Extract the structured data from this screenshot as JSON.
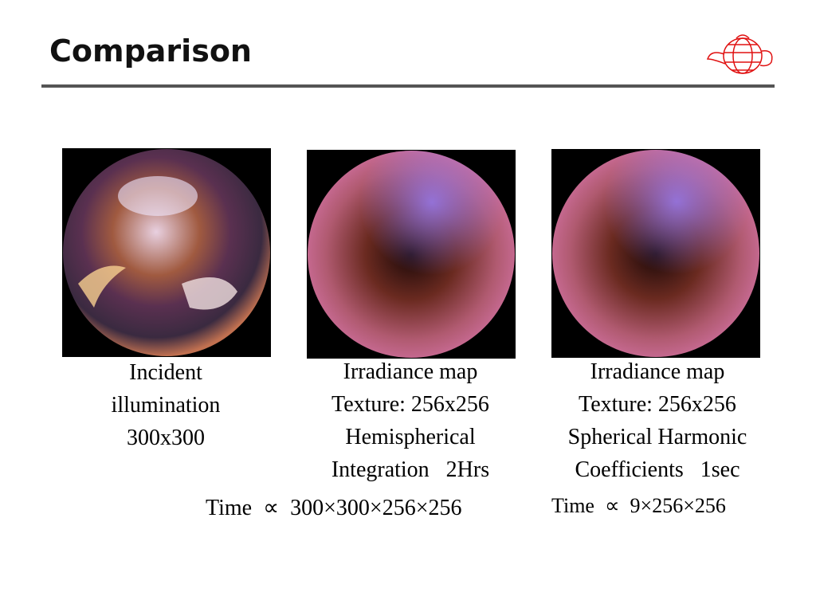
{
  "title": "Comparison",
  "panels": [
    {
      "caption": [
        "Incident",
        "illumination",
        "300x300"
      ]
    },
    {
      "caption": [
        "Irradiance map",
        "Texture: 256x256",
        "Hemispherical",
        "Integration   2Hrs"
      ]
    },
    {
      "caption": [
        "Irradiance map",
        "Texture: 256x256",
        "Spherical Harmonic",
        "Coefficients   1sec"
      ]
    }
  ],
  "formulas": [
    "Time  ∝  300×300×256×256",
    "Time  ∝  9×256×256"
  ]
}
